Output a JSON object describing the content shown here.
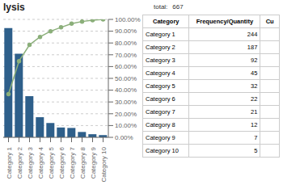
{
  "chart_data": {
    "type": "bar",
    "title": "lysis",
    "categories": [
      "Category 1",
      "Category 2",
      "Category 3",
      "Category 4",
      "Category 5",
      "Category 6",
      "Category 7",
      "Category 8",
      "Category 9",
      "Category 10"
    ],
    "series": [
      {
        "type": "bar",
        "color": "#2E5F8A",
        "values": [
          244,
          187,
          92,
          45,
          32,
          22,
          21,
          12,
          7,
          5
        ]
      },
      {
        "type": "line",
        "axis": "y2",
        "color": "#8BAF7A",
        "marker": "circle",
        "values": [
          36.5817091454,
          64.6176911544,
          78.4107946027,
          85.1574212894,
          89.9550224888,
          93.2533733133,
          96.4017991004,
          98.2008995502,
          99.2503748126,
          100
        ]
      }
    ],
    "ylim": [
      0,
      263.52
    ],
    "y2lim": [
      0,
      100
    ],
    "y2ticks": [
      {
        "value": 0,
        "label": "0.00%"
      },
      {
        "value": 10,
        "label": "10.00%"
      },
      {
        "value": 20,
        "label": "20.00%"
      },
      {
        "value": 30,
        "label": "30.00%"
      },
      {
        "value": 40,
        "label": "40.00%"
      },
      {
        "value": 50,
        "label": "50.00%"
      },
      {
        "value": 60,
        "label": "60.00%"
      },
      {
        "value": 70,
        "label": "70.00%"
      },
      {
        "value": 80,
        "label": "80.00%"
      },
      {
        "value": 90,
        "label": "90.00%"
      },
      {
        "value": 100,
        "label": "100.00%"
      }
    ],
    "grid": true,
    "total": {
      "label": "total:",
      "value": 667
    },
    "table": {
      "header": [
        "Category",
        "Frequency/Quantity",
        "Cu"
      ],
      "rows": [
        [
          "Category 1",
          244
        ],
        [
          "Category 2",
          187
        ],
        [
          "Category 3",
          92
        ],
        [
          "Category 4",
          45
        ],
        [
          "Category 5",
          32
        ],
        [
          "Category 6",
          22
        ],
        [
          "Category 7",
          21
        ],
        [
          "Category 8",
          12
        ],
        [
          "Category 9",
          7
        ],
        [
          "Category 10",
          5
        ]
      ]
    }
  }
}
